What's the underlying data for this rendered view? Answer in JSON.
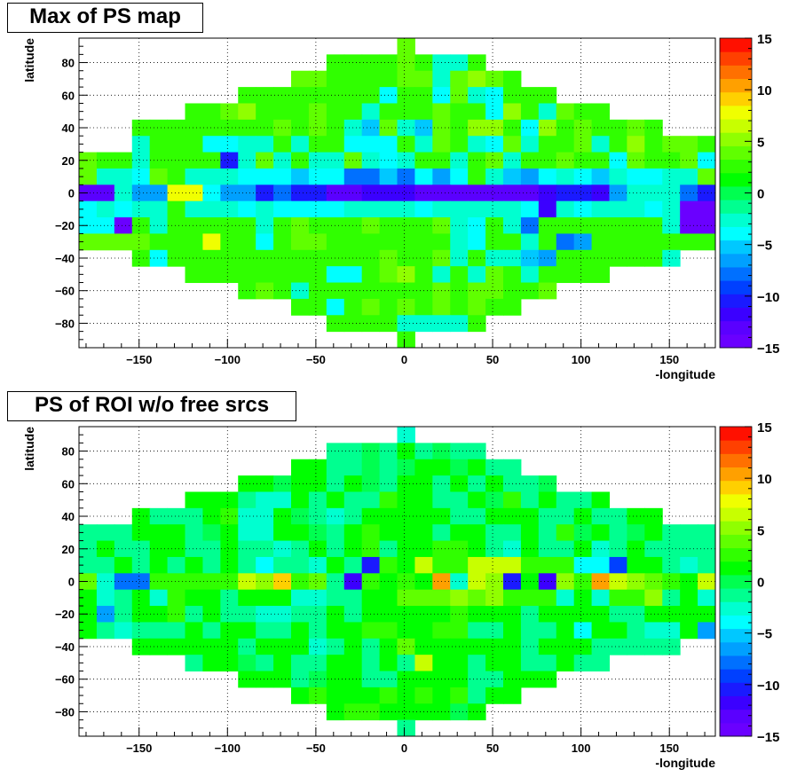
{
  "panels": [
    {
      "title": "Max of PS map",
      "xlabel": "-longitude",
      "ylabel": "latitude"
    },
    {
      "title": "PS of ROI w/o free srcs",
      "xlabel": "-longitude",
      "ylabel": "latitude"
    }
  ],
  "chart_data": [
    {
      "type": "heatmap",
      "title": "Max of PS map",
      "xlabel": "-longitude",
      "ylabel": "latitude",
      "xlim": [
        -184,
        176
      ],
      "ylim": [
        -95,
        95
      ],
      "xticks": [
        -150,
        -100,
        -50,
        0,
        50,
        100,
        150
      ],
      "yticks": [
        -80,
        -60,
        -40,
        -20,
        0,
        20,
        40,
        60,
        80
      ],
      "zlim": [
        -15,
        15
      ],
      "zticks": [
        -15,
        -10,
        -5,
        0,
        5,
        10,
        15
      ],
      "grid": true,
      "x_bin_width": 10,
      "rows": [
        {
          "lat": 90,
          "x_start": -4,
          "values": [
            4
          ]
        },
        {
          "lat": 80,
          "x_start": -44,
          "values": [
            3,
            3,
            2,
            3,
            4,
            2,
            -3,
            -3,
            3
          ]
        },
        {
          "lat": 70,
          "x_start": -64,
          "values": [
            4,
            4,
            2,
            3,
            2,
            3,
            4,
            4,
            -3,
            4,
            5,
            4,
            3
          ]
        },
        {
          "lat": 60,
          "x_start": -94,
          "values": [
            2,
            2,
            2,
            3,
            3,
            2,
            2,
            3,
            -4,
            3,
            3,
            -4,
            4,
            -2,
            -4,
            2,
            2,
            2
          ]
        },
        {
          "lat": 50,
          "x_start": -124,
          "values": [
            2,
            3,
            4,
            5,
            3,
            3,
            2,
            4,
            2,
            3,
            -3,
            3,
            2,
            3,
            4,
            3,
            3,
            -4,
            5,
            2,
            -3,
            4,
            2,
            2
          ]
        },
        {
          "lat": 40,
          "x_start": -154,
          "values": [
            2,
            3,
            3,
            3,
            3,
            3,
            3,
            2,
            4,
            3,
            4,
            2,
            -3,
            -5,
            4,
            -3,
            -5,
            4,
            3,
            5,
            5,
            2,
            -4,
            5,
            3,
            4,
            3,
            3,
            4,
            3
          ]
        },
        {
          "lat": 30,
          "x_start": -154,
          "values": [
            -2,
            3,
            3,
            3,
            -4,
            -4,
            -3,
            -3,
            2,
            -3,
            3,
            2,
            -4,
            -4,
            -4,
            3,
            -3,
            4,
            2,
            -3,
            -4,
            4,
            -3,
            3,
            3,
            4,
            -3,
            3,
            5,
            3,
            4,
            4,
            2,
            3
          ]
        },
        {
          "lat": 20,
          "x_start": -184,
          "values": [
            4,
            3,
            3,
            -3,
            3,
            3,
            3,
            2,
            -11,
            -3,
            4,
            -3,
            3,
            -3,
            -3,
            4,
            -3,
            -4,
            -3,
            3,
            3,
            -2,
            3,
            4,
            -3,
            3,
            3,
            4,
            3,
            3,
            -4,
            4,
            3,
            3,
            4,
            -4
          ]
        },
        {
          "lat": 10,
          "x_start": -184,
          "values": [
            4,
            -3,
            -3,
            -4,
            4,
            3,
            -3,
            -3,
            -3,
            -4,
            -4,
            -4,
            -5,
            -4,
            -4,
            -8,
            -8,
            -5,
            -8,
            -4,
            -6,
            -4,
            3,
            -3,
            -5,
            -6,
            -4,
            -3,
            -4,
            -5,
            -3,
            -4,
            -4,
            -3,
            -3,
            4
          ]
        },
        {
          "lat": 0,
          "x_start": -184,
          "values": [
            -13,
            -13,
            -3,
            -7,
            -7,
            8,
            8,
            -4,
            -7,
            -7,
            -10,
            -8,
            -10,
            -10,
            -13,
            -13,
            -12,
            -12,
            -12,
            -13,
            -13,
            -13,
            -13,
            -13,
            -13,
            -13,
            -12,
            -11,
            -11,
            -12,
            -6,
            -3,
            -3,
            -3,
            -8,
            -11,
            8,
            -13
          ]
        },
        {
          "lat": -10,
          "x_start": -184,
          "values": [
            -4,
            -3,
            -4,
            -3,
            -3,
            3,
            -3,
            -3,
            -3,
            -4,
            -3,
            -4,
            -4,
            -4,
            -4,
            -3,
            -3,
            -3,
            -3,
            -4,
            -3,
            -3,
            -3,
            -3,
            -3,
            -4,
            -12,
            -3,
            -4,
            -3,
            -3,
            -3,
            -4,
            -3,
            -14,
            -14
          ]
        },
        {
          "lat": -20,
          "x_start": -184,
          "values": [
            -4,
            -4,
            -14,
            3,
            -3,
            3,
            3,
            3,
            3,
            3,
            -3,
            3,
            4,
            3,
            3,
            2,
            4,
            3,
            3,
            3,
            4,
            -3,
            -4,
            3,
            -3,
            -8,
            3,
            2,
            2,
            3,
            3,
            3,
            3,
            -3,
            -14,
            -14
          ]
        },
        {
          "lat": -30,
          "x_start": -184,
          "values": [
            4,
            4,
            4,
            4,
            3,
            3,
            3,
            8,
            3,
            3,
            -4,
            3,
            4,
            4,
            3,
            3,
            3,
            3,
            3,
            3,
            3,
            -3,
            -4,
            3,
            3,
            -3,
            2,
            -8,
            -6,
            3,
            3,
            3,
            3,
            3,
            3,
            3
          ]
        },
        {
          "lat": -40,
          "x_start": -154,
          "values": [
            3,
            -4,
            3,
            3,
            3,
            3,
            3,
            3,
            3,
            3,
            3,
            3,
            3,
            3,
            4,
            3,
            3,
            4,
            -3,
            3,
            -3,
            -3,
            -5,
            -6,
            3,
            3,
            3,
            3,
            3,
            3,
            -3
          ]
        },
        {
          "lat": -50,
          "x_start": -124,
          "values": [
            3,
            3,
            3,
            3,
            2,
            3,
            3,
            3,
            -4,
            -4,
            2,
            4,
            5,
            3,
            -3,
            3,
            -3,
            4,
            3,
            -3,
            3,
            3,
            3,
            3
          ]
        },
        {
          "lat": -60,
          "x_start": -94,
          "values": [
            2,
            4,
            3,
            -3,
            3,
            2,
            3,
            3,
            3,
            3,
            3,
            4,
            3,
            4,
            4,
            3,
            3,
            4
          ]
        },
        {
          "lat": -70,
          "x_start": -64,
          "values": [
            3,
            3,
            -4,
            3,
            4,
            3,
            4,
            3,
            4,
            3,
            4,
            3,
            3
          ]
        },
        {
          "lat": -80,
          "x_start": -44,
          "values": [
            3,
            3,
            3,
            3,
            -3,
            -3,
            -3,
            -3,
            3
          ]
        },
        {
          "lat": -90,
          "x_start": -4,
          "values": [
            3
          ]
        }
      ]
    },
    {
      "type": "heatmap",
      "title": "PS of ROI w/o free srcs",
      "xlabel": "-longitude",
      "ylabel": "latitude",
      "xlim": [
        -184,
        176
      ],
      "ylim": [
        -95,
        95
      ],
      "xticks": [
        -150,
        -100,
        -50,
        0,
        50,
        100,
        150
      ],
      "yticks": [
        -80,
        -60,
        -40,
        -20,
        0,
        20,
        40,
        60,
        80
      ],
      "zlim": [
        -15,
        15
      ],
      "zticks": [
        -15,
        -10,
        -5,
        0,
        5,
        10,
        15
      ],
      "grid": true,
      "x_bin_width": 10,
      "rows": [
        {
          "lat": 90,
          "x_start": -4,
          "values": [
            -3
          ]
        },
        {
          "lat": 80,
          "x_start": -44,
          "values": [
            -1,
            -1,
            0,
            -1,
            1,
            -1,
            0,
            -1,
            -1
          ]
        },
        {
          "lat": 70,
          "x_start": -64,
          "values": [
            1,
            1,
            -1,
            -1,
            0,
            -1,
            0,
            1,
            1,
            0,
            1,
            -1,
            -1
          ]
        },
        {
          "lat": 60,
          "x_start": -94,
          "values": [
            1,
            1,
            0,
            1,
            1,
            -1,
            1,
            0,
            -1,
            1,
            1,
            -1,
            1,
            -1,
            1,
            -1,
            -1,
            0
          ]
        },
        {
          "lat": 50,
          "x_start": -124,
          "values": [
            1,
            1,
            1,
            -1,
            -3,
            -3,
            1,
            -1,
            1,
            -1,
            -1,
            2,
            1,
            1,
            -1,
            -1,
            1,
            0,
            2,
            -1,
            1,
            -1,
            -1,
            1
          ]
        },
        {
          "lat": 40,
          "x_start": -154,
          "values": [
            1,
            -1,
            -1,
            -1,
            1,
            3,
            -3,
            -3,
            1,
            0,
            -1,
            -2,
            -1,
            1,
            1,
            1,
            1,
            1,
            -1,
            -1,
            1,
            1,
            1,
            -1,
            -1,
            1,
            -1,
            -1,
            1,
            1
          ]
        },
        {
          "lat": 30,
          "x_start": -184,
          "values": [
            -1,
            -1,
            -1,
            1,
            1,
            1,
            -1,
            0,
            1,
            -3,
            -3,
            1,
            1,
            0,
            -1,
            1,
            3,
            1,
            1,
            1,
            -1,
            1,
            1,
            -1,
            -1,
            1,
            -1,
            3,
            0,
            1,
            -1,
            0,
            1,
            -1,
            -1,
            -1
          ]
        },
        {
          "lat": 20,
          "x_start": -184,
          "values": [
            -1,
            1,
            -1,
            -1,
            1,
            1,
            -1,
            -1,
            1,
            -1,
            -1,
            -3,
            -1,
            1,
            -1,
            1,
            3,
            -1,
            1,
            1,
            3,
            3,
            1,
            -1,
            -2,
            1,
            -1,
            -1,
            1,
            -3,
            -1,
            1,
            -1,
            -1,
            -1,
            -1
          ]
        },
        {
          "lat": 10,
          "x_start": -184,
          "values": [
            -1,
            -1,
            1,
            -1,
            1,
            -1,
            1,
            -1,
            1,
            -1,
            -4,
            -1,
            -1,
            -2,
            1,
            -1,
            -11,
            3,
            1,
            6,
            3,
            3,
            7,
            7,
            7,
            3,
            3,
            3,
            -4,
            -4,
            -9,
            1,
            1,
            -1,
            -3,
            -1
          ]
        },
        {
          "lat": 0,
          "x_start": -184,
          "values": [
            4,
            -3,
            -8,
            -8,
            3,
            3,
            3,
            3,
            3,
            6,
            5,
            9,
            3,
            4,
            -1,
            -12,
            3,
            1,
            3,
            1,
            10,
            -3,
            6,
            5,
            -10,
            1,
            -12,
            5,
            3,
            10,
            7,
            5,
            4,
            3,
            1,
            7
          ]
        },
        {
          "lat": -10,
          "x_start": -184,
          "values": [
            1,
            -3,
            -1,
            1,
            -3,
            3,
            1,
            1,
            -1,
            1,
            1,
            1,
            -3,
            -3,
            -1,
            -1,
            1,
            1,
            4,
            4,
            4,
            5,
            4,
            5,
            3,
            2,
            3,
            -2,
            1,
            -3,
            3,
            3,
            5,
            -1,
            1,
            -3
          ]
        },
        {
          "lat": -20,
          "x_start": -184,
          "values": [
            1,
            -7,
            -1,
            1,
            1,
            3,
            -1,
            1,
            -1,
            -1,
            -3,
            -3,
            -1,
            -1,
            1,
            -1,
            1,
            1,
            1,
            1,
            1,
            3,
            1,
            1,
            1,
            -1,
            1,
            1,
            1,
            1,
            -1,
            -1,
            1,
            1,
            1,
            1
          ]
        },
        {
          "lat": -30,
          "x_start": -184,
          "values": [
            1,
            -1,
            -3,
            -1,
            -1,
            -1,
            1,
            -1,
            1,
            1,
            -1,
            -1,
            1,
            -1,
            1,
            1,
            3,
            3,
            1,
            1,
            3,
            3,
            -1,
            -1,
            1,
            -1,
            -1,
            1,
            -4,
            1,
            1,
            -1,
            -3,
            -3,
            1,
            -6
          ]
        },
        {
          "lat": -40,
          "x_start": -154,
          "values": [
            1,
            1,
            1,
            1,
            1,
            1,
            -1,
            1,
            1,
            1,
            -3,
            -1,
            1,
            -1,
            1,
            4,
            1,
            1,
            1,
            1,
            1,
            1,
            -1,
            1,
            1,
            1,
            -1,
            -1,
            -1,
            -1,
            -1
          ]
        },
        {
          "lat": -50,
          "x_start": -124,
          "values": [
            -1,
            1,
            1,
            0,
            -1,
            1,
            -1,
            -1,
            1,
            1,
            -1,
            1,
            -1,
            7,
            1,
            1,
            -1,
            1,
            1,
            -1,
            -1,
            1,
            -1,
            -1
          ]
        },
        {
          "lat": -60,
          "x_start": -94,
          "values": [
            1,
            1,
            1,
            -1,
            0,
            1,
            1,
            -1,
            -1,
            1,
            1,
            1,
            1,
            -1,
            -1,
            1,
            1,
            1
          ]
        },
        {
          "lat": -70,
          "x_start": -64,
          "values": [
            1,
            2,
            1,
            1,
            1,
            2,
            1,
            2,
            1,
            2,
            -1,
            1,
            1
          ]
        },
        {
          "lat": -80,
          "x_start": -44,
          "values": [
            1,
            3,
            3,
            1,
            1,
            1,
            1,
            0,
            1
          ]
        },
        {
          "lat": -90,
          "x_start": -4,
          "values": [
            -1
          ]
        }
      ]
    }
  ]
}
